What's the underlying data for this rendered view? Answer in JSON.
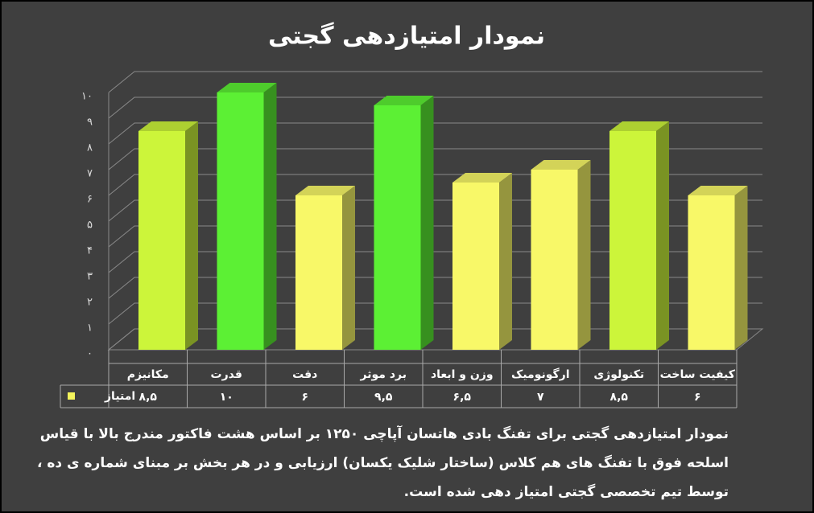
{
  "chart_data": {
    "type": "bar3d",
    "title": "نمودار امتیازدهی گجتی",
    "categories": [
      "مکانیزم",
      "قدرت",
      "دقت",
      "برد موثر",
      "وزن و ابعاد",
      "ارگونومیک",
      "تکنولوژی",
      "کیفیت ساخت"
    ],
    "series": [
      {
        "name": "امتیاز",
        "color": "#f4f45c",
        "values": [
          8.5,
          10,
          6,
          9.5,
          6.5,
          7,
          8.5,
          6
        ],
        "value_labels": [
          "۸,۵",
          "۱۰",
          "۶",
          "۹,۵",
          "۶,۵",
          "۷",
          "۸,۵",
          "۶"
        ],
        "colors": [
          "#ccf53a",
          "#5cf034",
          "#f8f868",
          "#5cf034",
          "#f8f868",
          "#f8f868",
          "#ccf53a",
          "#f8f868"
        ]
      }
    ],
    "ylim": [
      0,
      10
    ],
    "yticks": [
      {
        "value": 0,
        "label": "۰"
      },
      {
        "value": 1,
        "label": "۱"
      },
      {
        "value": 2,
        "label": "۲"
      },
      {
        "value": 3,
        "label": "۳"
      },
      {
        "value": 4,
        "label": "۴"
      },
      {
        "value": 5,
        "label": "۵"
      },
      {
        "value": 6,
        "label": "۶"
      },
      {
        "value": 7,
        "label": "۷"
      },
      {
        "value": 8,
        "label": "۸"
      },
      {
        "value": 9,
        "label": "۹"
      },
      {
        "value": 10,
        "label": "۱۰"
      }
    ],
    "grid": true,
    "notes": [
      "نمودار امتیازدهی گجتی برای تفنگ بادی هاتسان آپاچی ۱۲۵۰ بر اساس هشت فاکتور مندرج بالا با قیاس",
      "اسلحه فوق با تفنگ های هم کلاس (ساختار شلیک یکسان) ارزیابی و در هر بخش بر مبنای شماره ی ده ،",
      "توسط تیم تخصصی گجتی امتیاز دهی شده است."
    ]
  }
}
